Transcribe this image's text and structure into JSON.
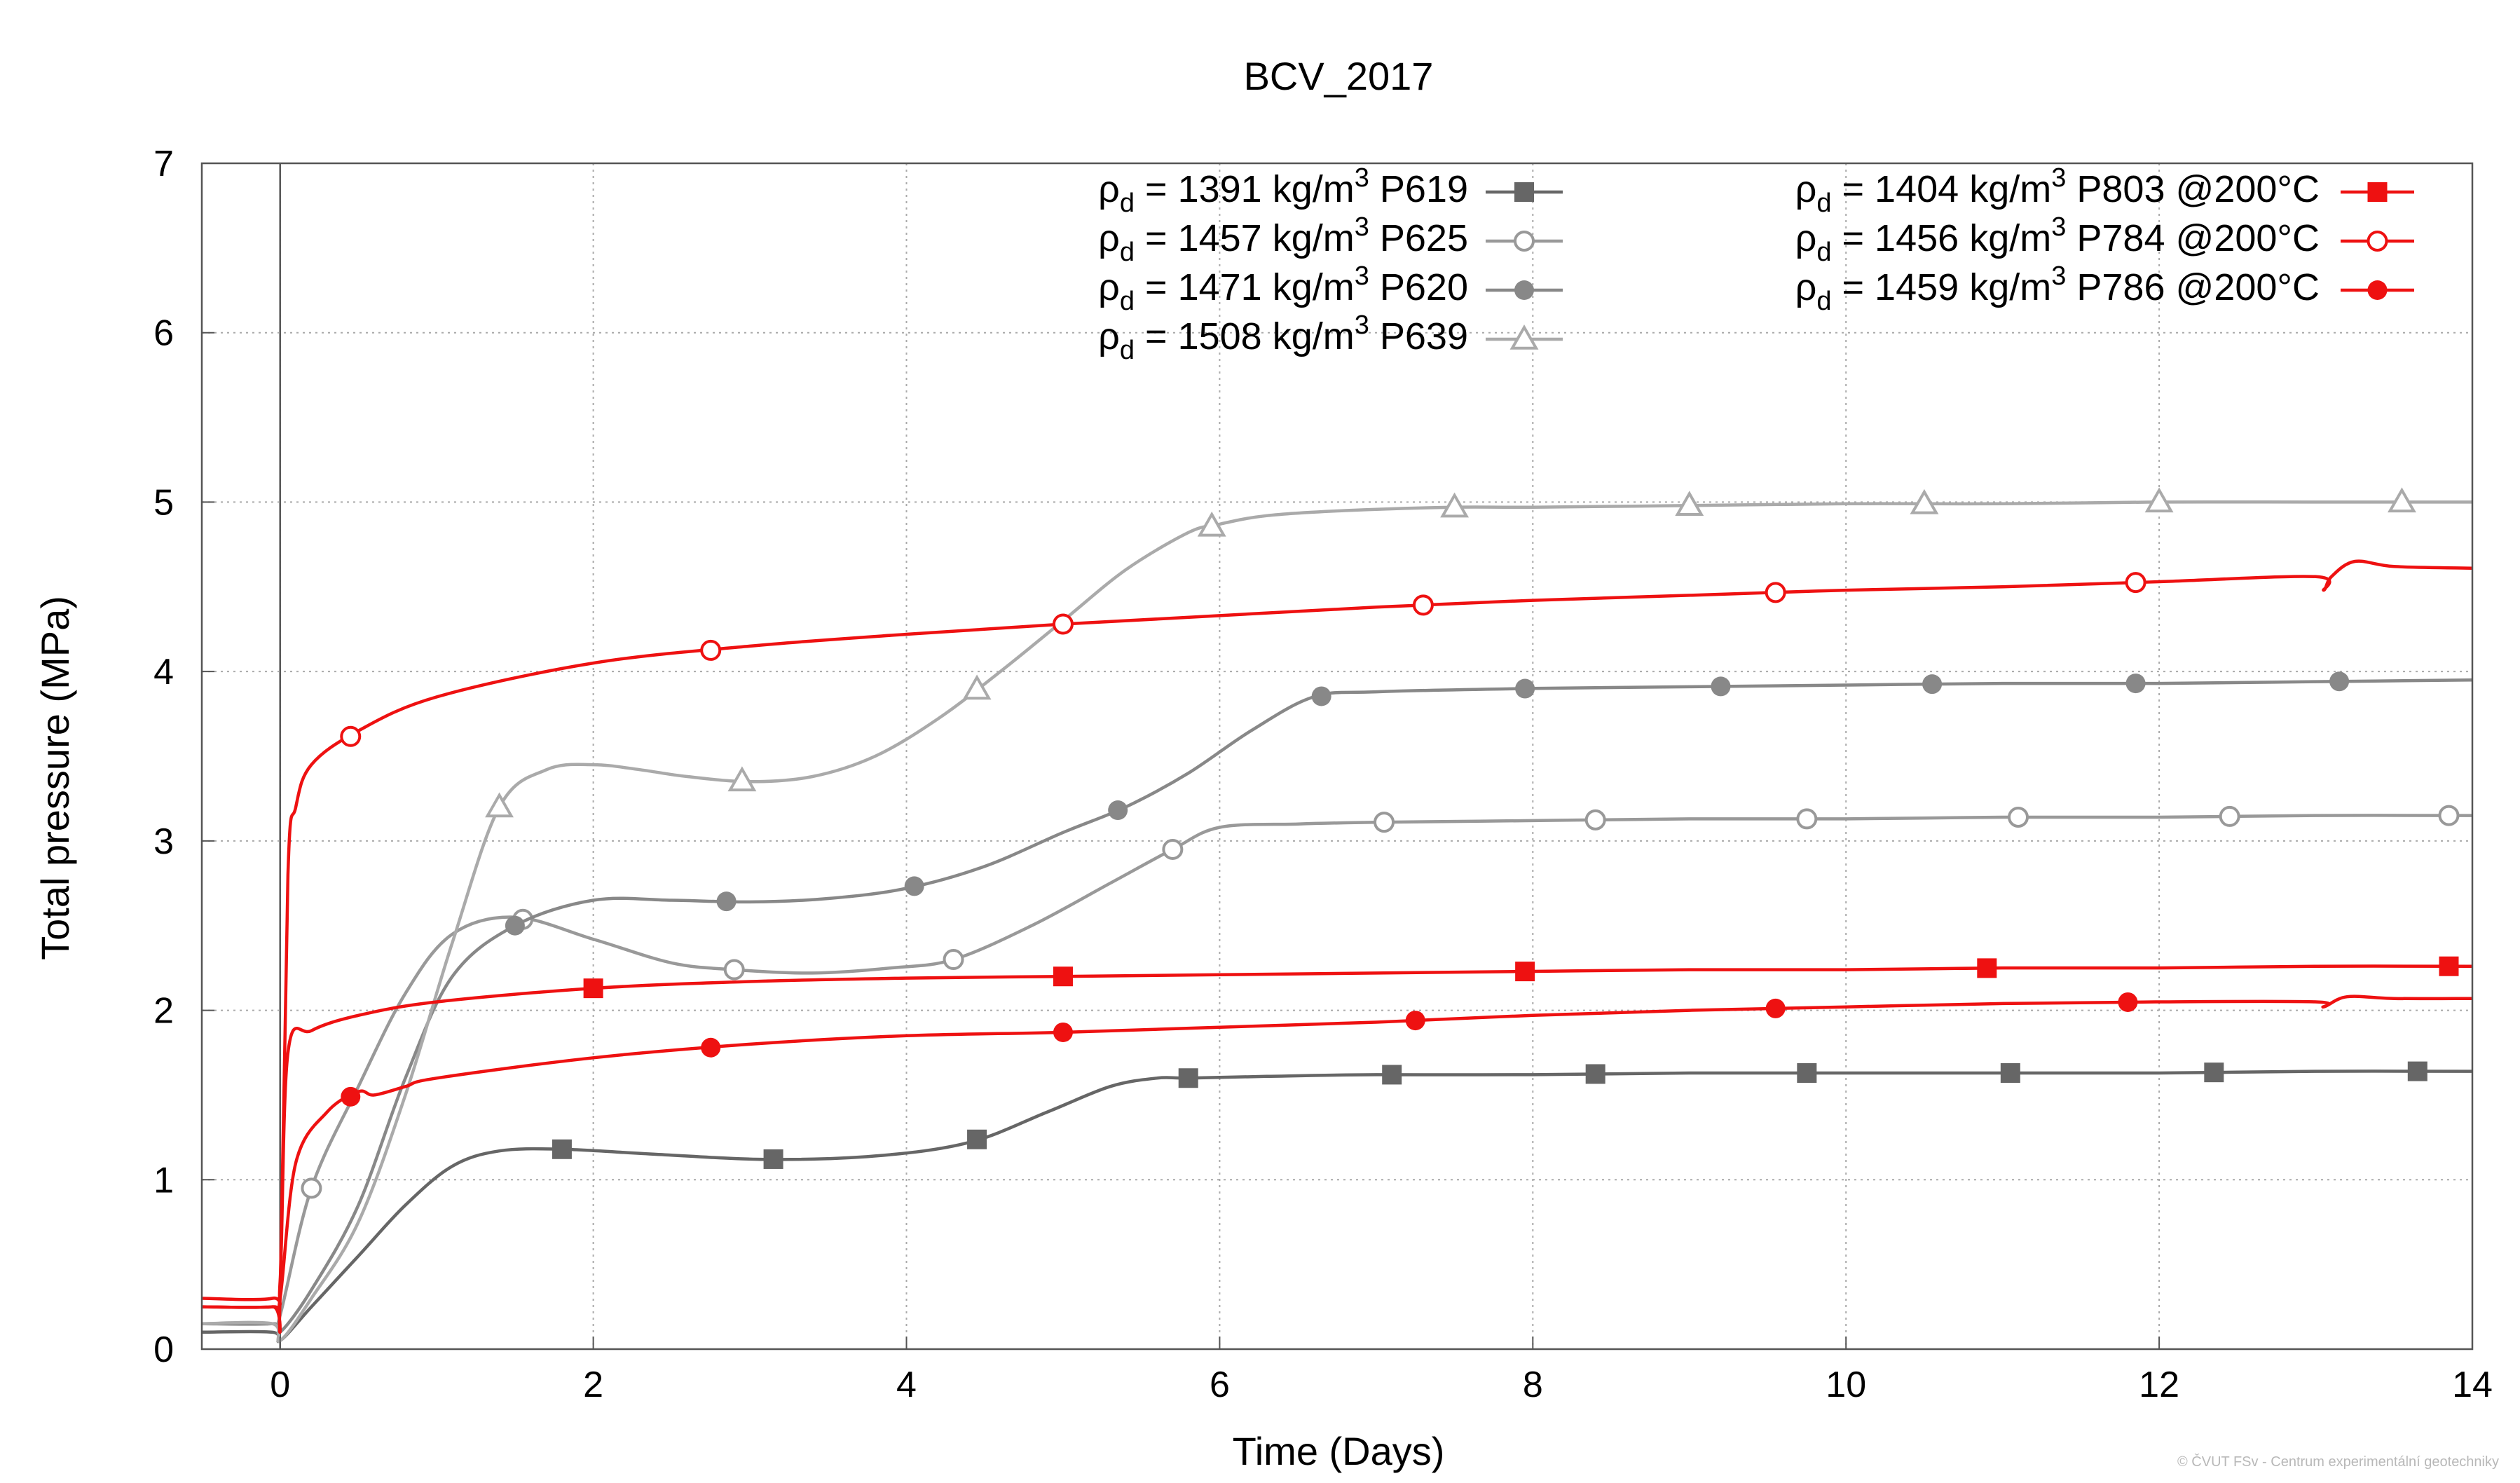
{
  "chart_data": {
    "type": "line",
    "title": "BCV_2017",
    "xlabel": "Time (Days)",
    "ylabel": "Total pressure (MPa)",
    "xlim": [
      -0.5,
      14
    ],
    "ylim": [
      0,
      7
    ],
    "xticks": [
      "0",
      "2",
      "4",
      "6",
      "8",
      "10",
      "12",
      "14"
    ],
    "yticks": [
      "0",
      "1",
      "2",
      "3",
      "4",
      "5",
      "6",
      "7"
    ],
    "grid": true,
    "legend_position": "top",
    "series": [
      {
        "name": "P619",
        "density": "1391",
        "suffix": "",
        "color": "#666666",
        "marker": "square-filled",
        "x": [
          -0.5,
          -0.05,
          0,
          0.2,
          0.5,
          0.8,
          1.1,
          1.4,
          1.8,
          2.4,
          3.1,
          3.8,
          4.4,
          4.9,
          5.3,
          5.6,
          5.8,
          6.3,
          7.0,
          8.0,
          9.0,
          10.0,
          11.0,
          12.0,
          13.0,
          14.0
        ],
        "y": [
          0.1,
          0.1,
          0.05,
          0.25,
          0.55,
          0.85,
          1.08,
          1.17,
          1.18,
          1.15,
          1.12,
          1.14,
          1.22,
          1.4,
          1.55,
          1.6,
          1.6,
          1.61,
          1.62,
          1.62,
          1.63,
          1.63,
          1.63,
          1.63,
          1.64,
          1.64
        ],
        "markers_x": [
          1.8,
          3.15,
          4.45,
          5.8,
          7.1,
          8.4,
          9.75,
          11.05,
          12.35,
          13.65
        ]
      },
      {
        "name": "P625",
        "density": "1457",
        "suffix": "",
        "color": "#999999",
        "marker": "circle-open",
        "x": [
          -0.5,
          -0.05,
          0,
          0.2,
          0.5,
          0.8,
          1.1,
          1.5,
          2.0,
          2.5,
          2.9,
          3.4,
          3.9,
          4.3,
          4.8,
          5.3,
          5.7,
          6.0,
          6.5,
          7.0,
          8.0,
          9.0,
          10.0,
          11.0,
          12.0,
          13.0,
          14.0
        ],
        "y": [
          0.15,
          0.15,
          0.2,
          0.95,
          1.55,
          2.1,
          2.45,
          2.55,
          2.42,
          2.28,
          2.24,
          2.22,
          2.25,
          2.3,
          2.5,
          2.75,
          2.95,
          3.08,
          3.1,
          3.11,
          3.12,
          3.13,
          3.13,
          3.14,
          3.14,
          3.15,
          3.15
        ],
        "markers_x": [
          0.2,
          1.55,
          2.9,
          4.3,
          5.7,
          7.05,
          8.4,
          9.75,
          11.1,
          12.45,
          13.85
        ]
      },
      {
        "name": "P620",
        "density": "1471",
        "suffix": "",
        "color": "#888888",
        "marker": "circle-filled",
        "x": [
          -0.5,
          -0.05,
          0,
          0.2,
          0.5,
          0.8,
          1.1,
          1.5,
          2.0,
          2.5,
          3.0,
          3.5,
          4.0,
          4.5,
          5.0,
          5.4,
          5.8,
          6.2,
          6.6,
          7.0,
          8.0,
          9.0,
          10.0,
          11.0,
          12.0,
          13.0,
          14.0
        ],
        "y": [
          0.15,
          0.15,
          0.1,
          0.35,
          0.85,
          1.6,
          2.2,
          2.5,
          2.65,
          2.65,
          2.64,
          2.66,
          2.72,
          2.85,
          3.05,
          3.2,
          3.4,
          3.65,
          3.85,
          3.88,
          3.9,
          3.91,
          3.92,
          3.93,
          3.93,
          3.94,
          3.95
        ],
        "markers_x": [
          1.5,
          2.85,
          4.05,
          5.35,
          6.65,
          7.95,
          9.2,
          10.55,
          11.85,
          13.15
        ]
      },
      {
        "name": "P639",
        "density": "1508",
        "suffix": "",
        "color": "#aaaaaa",
        "marker": "triangle-open",
        "x": [
          -0.5,
          -0.05,
          0,
          0.2,
          0.5,
          0.8,
          1.1,
          1.4,
          1.7,
          2.0,
          2.3,
          2.6,
          3.0,
          3.4,
          3.8,
          4.2,
          4.6,
          5.0,
          5.4,
          5.8,
          6.0,
          6.3,
          6.8,
          7.5,
          8.0,
          9.0,
          10.0,
          11.0,
          12.0,
          13.0,
          14.0
        ],
        "y": [
          0.15,
          0.15,
          0.05,
          0.3,
          0.75,
          1.5,
          2.4,
          3.2,
          3.42,
          3.45,
          3.42,
          3.38,
          3.35,
          3.38,
          3.5,
          3.72,
          4.0,
          4.3,
          4.6,
          4.82,
          4.87,
          4.92,
          4.95,
          4.97,
          4.97,
          4.98,
          4.99,
          4.99,
          5.0,
          5.0,
          5.0
        ],
        "markers_x": [
          1.4,
          2.95,
          4.45,
          5.95,
          7.5,
          9.0,
          10.5,
          12.0,
          13.55
        ]
      },
      {
        "name": "P803",
        "density": "1404",
        "suffix": " @200°C",
        "color": "#ee1111",
        "marker": "square-filled",
        "x": [
          -0.5,
          -0.05,
          0,
          0.05,
          0.2,
          0.5,
          1.0,
          2.0,
          3.0,
          4.0,
          5.0,
          6.0,
          7.0,
          8.0,
          9.0,
          10.0,
          11.0,
          12.0,
          13.0,
          14.0
        ],
        "y": [
          0.3,
          0.3,
          0.4,
          1.75,
          1.88,
          1.97,
          2.05,
          2.13,
          2.17,
          2.19,
          2.2,
          2.21,
          2.22,
          2.23,
          2.24,
          2.24,
          2.25,
          2.25,
          2.26,
          2.26
        ],
        "markers_x": [
          2.0,
          5.0,
          7.95,
          10.9,
          13.85
        ]
      },
      {
        "name": "P784",
        "density": "1456",
        "suffix": " @200°C",
        "color": "#ee1111",
        "marker": "circle-open",
        "x": [
          -0.5,
          -0.05,
          0,
          0.05,
          0.1,
          0.2,
          0.5,
          1.0,
          2.0,
          3.0,
          4.0,
          5.0,
          6.0,
          7.0,
          8.0,
          9.0,
          10.0,
          11.0,
          12.0,
          13.0,
          13.05,
          13.1,
          13.25,
          13.5,
          14.0
        ],
        "y": [
          0.25,
          0.25,
          0.3,
          2.8,
          3.2,
          3.45,
          3.65,
          3.85,
          4.05,
          4.15,
          4.22,
          4.28,
          4.33,
          4.38,
          4.42,
          4.45,
          4.48,
          4.5,
          4.53,
          4.56,
          4.48,
          4.56,
          4.65,
          4.62,
          4.61
        ],
        "markers_x": [
          0.45,
          2.75,
          5.0,
          7.3,
          9.55,
          11.85
        ]
      },
      {
        "name": "P786",
        "density": "1459",
        "suffix": " @200°C",
        "color": "#ee1111",
        "marker": "circle-filled",
        "x": [
          -0.5,
          -0.05,
          0,
          0.1,
          0.3,
          0.5,
          0.6,
          0.8,
          1.0,
          2.0,
          3.0,
          4.0,
          5.0,
          6.0,
          7.0,
          8.0,
          9.0,
          10.0,
          11.0,
          12.0,
          13.0,
          13.05,
          13.2,
          13.5,
          14.0
        ],
        "y": [
          0.25,
          0.25,
          0.3,
          1.1,
          1.4,
          1.52,
          1.5,
          1.55,
          1.6,
          1.72,
          1.8,
          1.85,
          1.87,
          1.9,
          1.93,
          1.97,
          2.0,
          2.02,
          2.04,
          2.05,
          2.05,
          2.02,
          2.08,
          2.07,
          2.07
        ],
        "markers_x": [
          0.45,
          2.75,
          5.0,
          7.25,
          9.55,
          11.8
        ]
      }
    ]
  },
  "legend": {
    "rho": "ρ",
    "sub": "d",
    "eq": " = ",
    "unit": " kg/m",
    "unit_sup": "3",
    "space": " "
  },
  "footer": {
    "copyright": "© ČVUT FSv - Centrum experimentální geotechniky"
  }
}
